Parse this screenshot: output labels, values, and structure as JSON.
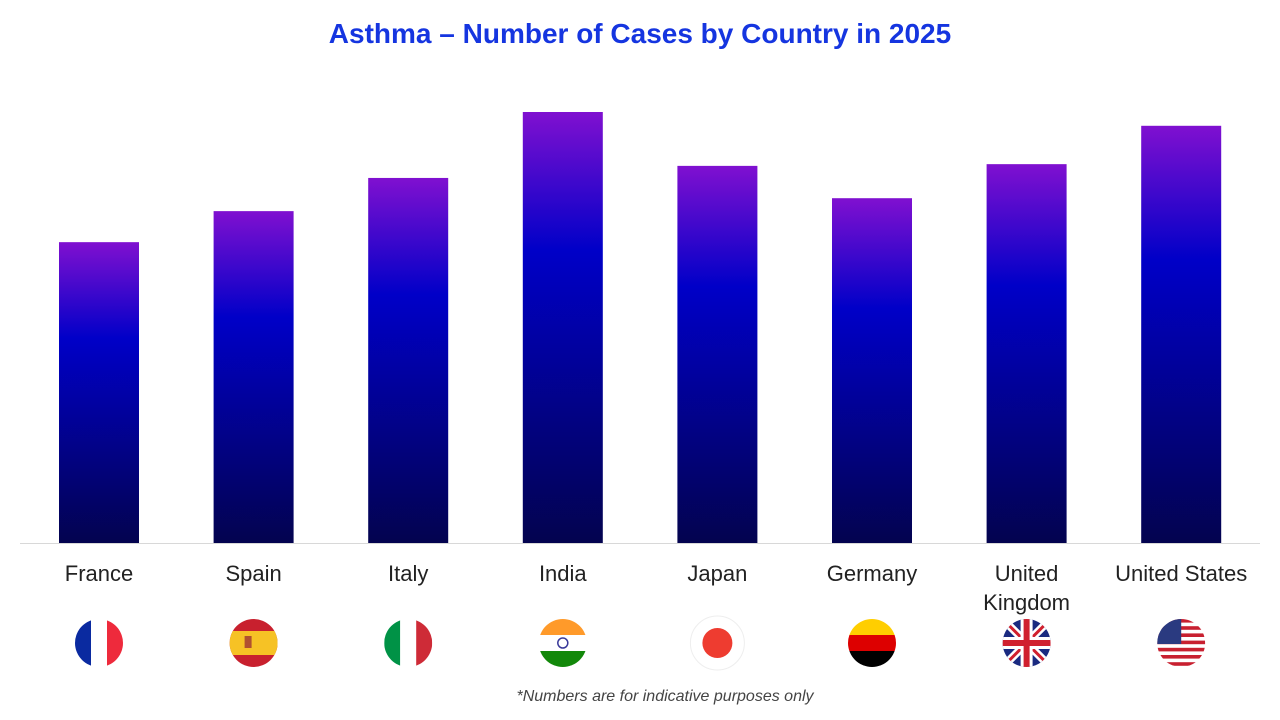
{
  "chart_data": {
    "type": "bar",
    "title": "Asthma – Number of Cases by Country in 2025",
    "categories": [
      "France",
      "Spain",
      "Italy",
      "India",
      "Japan",
      "Germany",
      "United Kingdom",
      "United States"
    ],
    "values": [
      69.8,
      77.0,
      84.7,
      100,
      87.5,
      80.0,
      87.9,
      96.8
    ],
    "value_note": "relative bar heights (no axis printed), India = 100",
    "xlabel": "",
    "ylabel": "",
    "grid": false,
    "legend": "none",
    "bar_gradient": [
      "#8010d0",
      "#0000c8",
      "#03034f"
    ],
    "title_color": "#1535e0",
    "category_icons": [
      "flag-france-icon",
      "flag-spain-icon",
      "flag-italy-icon",
      "flag-india-icon",
      "flag-japan-icon",
      "flag-germany-icon",
      "flag-uk-icon",
      "flag-us-icon"
    ],
    "footnote": "*Numbers are for indicative purposes only"
  }
}
